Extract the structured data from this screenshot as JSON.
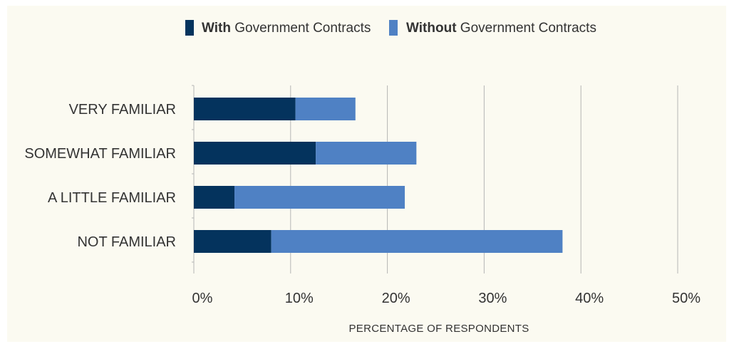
{
  "chart_data": {
    "type": "bar",
    "orientation": "horizontal",
    "stacked": true,
    "categories": [
      "VERY FAMILIAR",
      "SOMEWHAT FAMILIAR",
      "A LITTLE FAMILIAR",
      "NOT FAMILIAR"
    ],
    "series": [
      {
        "name_bold": "With",
        "name_rest": " Government Contracts",
        "color": "#04335d",
        "values": [
          10.5,
          12.6,
          4.2,
          8.0
        ]
      },
      {
        "name_bold": "Without",
        "name_rest": " Government Contracts",
        "color": "#4f81c4",
        "values": [
          6.2,
          10.4,
          17.6,
          30.1
        ]
      }
    ],
    "xlabel": "PERCENTAGE OF RESPONDENTS",
    "xlim": [
      0,
      50
    ],
    "xticks": [
      0,
      10,
      20,
      30,
      40,
      50
    ],
    "xtick_labels": [
      "0%",
      "10%",
      "20%",
      "30%",
      "40%",
      "50%"
    ],
    "grid": true,
    "legend_position": "top-center"
  },
  "colors": {
    "background": "#fbfaf1",
    "grid": "#b5b5b5",
    "text": "#333333"
  }
}
